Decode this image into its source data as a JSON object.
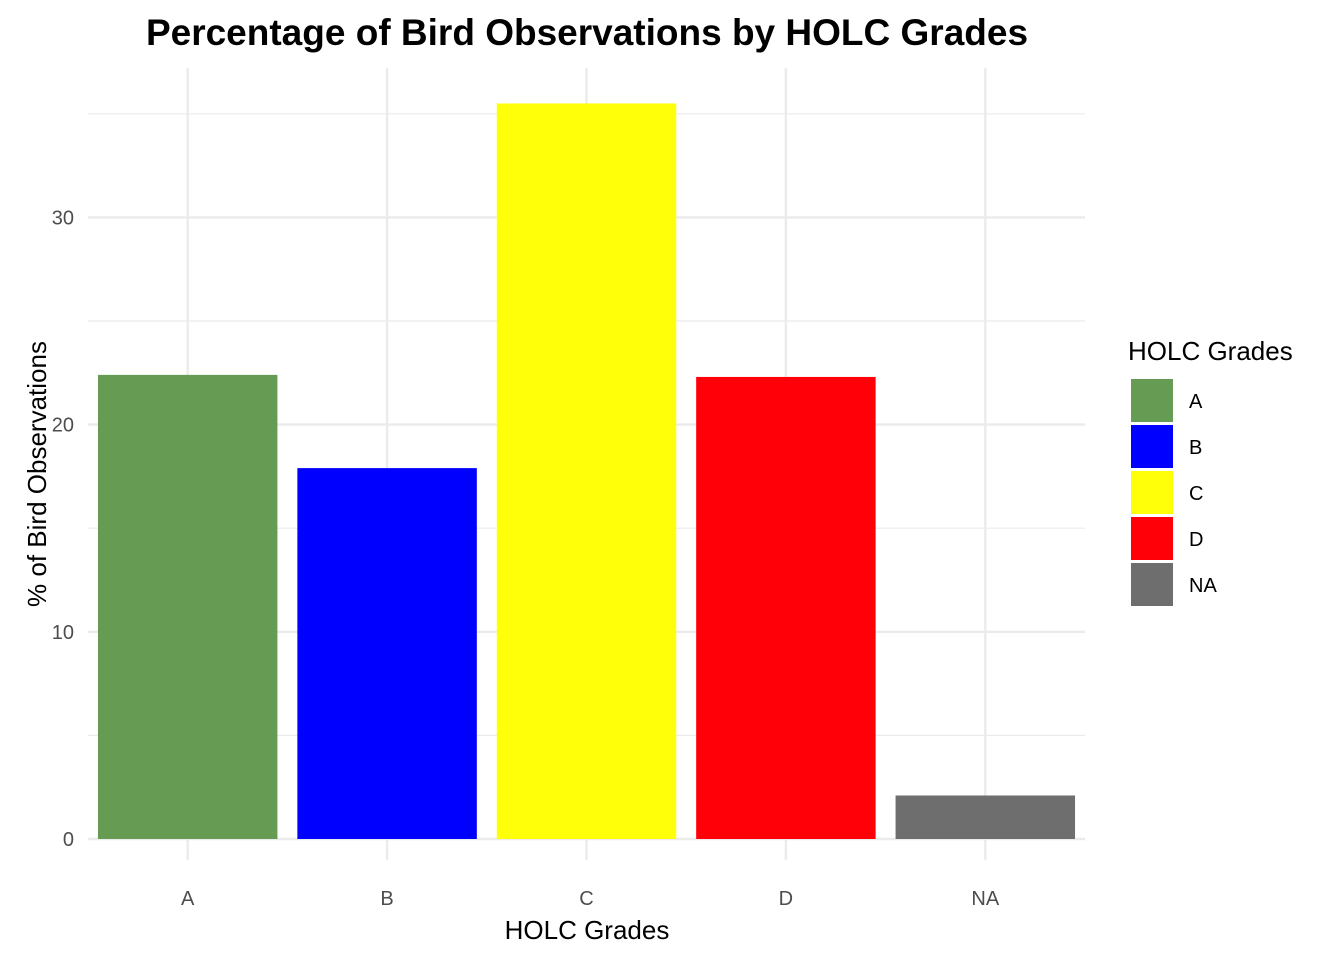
{
  "chart_data": {
    "type": "bar",
    "title": "Percentage of Bird Observations by HOLC Grades",
    "xlabel": "HOLC Grades",
    "ylabel": "% of Bird Observations",
    "categories": [
      "A",
      "B",
      "C",
      "D",
      "NA"
    ],
    "values": [
      22.4,
      17.9,
      35.5,
      22.3,
      2.1
    ],
    "colors": [
      "#659b52",
      "#0000ff",
      "#ffff0a",
      "#ff0008",
      "#6e6e6e"
    ],
    "ylim": [
      0,
      37.3
    ],
    "yticks": [
      0,
      10,
      20,
      30
    ],
    "grid": true,
    "legend": {
      "title": "HOLC Grades",
      "position": "right",
      "entries": [
        "A",
        "B",
        "C",
        "D",
        "NA"
      ]
    }
  }
}
